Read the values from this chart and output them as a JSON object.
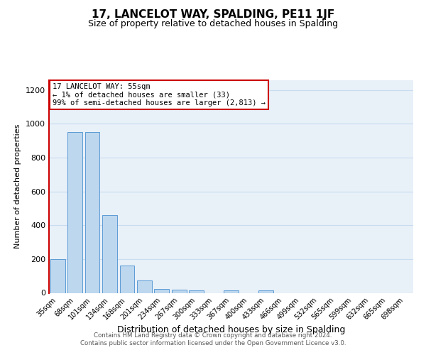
{
  "title": "17, LANCELOT WAY, SPALDING, PE11 1JF",
  "subtitle": "Size of property relative to detached houses in Spalding",
  "xlabel": "Distribution of detached houses by size in Spalding",
  "ylabel": "Number of detached properties",
  "bar_labels": [
    "35sqm",
    "68sqm",
    "101sqm",
    "134sqm",
    "168sqm",
    "201sqm",
    "234sqm",
    "267sqm",
    "300sqm",
    "333sqm",
    "367sqm",
    "400sqm",
    "433sqm",
    "466sqm",
    "499sqm",
    "532sqm",
    "565sqm",
    "599sqm",
    "632sqm",
    "665sqm",
    "698sqm"
  ],
  "bar_values": [
    200,
    950,
    950,
    460,
    160,
    75,
    25,
    20,
    15,
    0,
    15,
    0,
    15,
    0,
    0,
    0,
    0,
    0,
    0,
    0,
    0
  ],
  "bar_color": "#bdd7ee",
  "bar_edge_color": "#5b9bd5",
  "grid_color": "#c8ddf0",
  "background_color": "#e8f0f8",
  "annotation_line_color": "#cc0000",
  "annotation_box_color": "#cc0000",
  "annotation_text_line1": "17 LANCELOT WAY: 55sqm",
  "annotation_text_line2": "← 1% of detached houses are smaller (33)",
  "annotation_text_line3": "99% of semi-detached houses are larger (2,813) →",
  "ylim": [
    0,
    1260
  ],
  "yticks": [
    0,
    200,
    400,
    600,
    800,
    1000,
    1200
  ],
  "footer_line1": "Contains HM Land Registry data © Crown copyright and database right 2024.",
  "footer_line2": "Contains public sector information licensed under the Open Government Licence v3.0."
}
